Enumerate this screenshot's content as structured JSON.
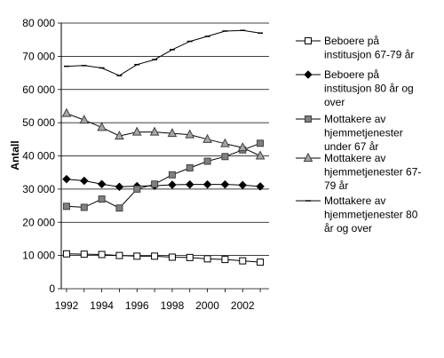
{
  "chart_data": {
    "type": "line",
    "title": "",
    "xlabel": "",
    "ylabel": "Antall",
    "x": [
      1992,
      1993,
      1994,
      1995,
      1996,
      1997,
      1998,
      1999,
      2000,
      2001,
      2002,
      2003
    ],
    "xticks": [
      "1992",
      "1994",
      "1996",
      "1998",
      "2000",
      "2002"
    ],
    "xlim": [
      1991.7,
      2003.5
    ],
    "ylim": [
      0,
      80000
    ],
    "yticks": [
      "0",
      "10 000",
      "20 000",
      "30 000",
      "40 000",
      "50 000",
      "60 000",
      "70 000",
      "80 000"
    ],
    "grid": "horizontal",
    "legend_position": "right",
    "series": [
      {
        "name": "Beboere på institusjon 67-79 år",
        "legend_lines": [
          "Beboere på",
          "institusjon 67-79 år"
        ],
        "marker": "square-open",
        "color": "#000000",
        "values": [
          10500,
          10400,
          10300,
          10000,
          9800,
          9800,
          9500,
          9400,
          9000,
          8800,
          8400,
          8000
        ]
      },
      {
        "name": "Beboere på institusjon 80 år og over",
        "legend_lines": [
          "Beboere på",
          "institusjon 80 år og",
          "over"
        ],
        "marker": "diamond",
        "color": "#000000",
        "values": [
          33000,
          32500,
          31500,
          30700,
          30900,
          31000,
          31300,
          31400,
          31400,
          31400,
          31200,
          30800
        ]
      },
      {
        "name": "Mottakere av hjemmetjenester under 67 år",
        "legend_lines": [
          "Mottakere av",
          "hjemmetjenester",
          "under 67 år"
        ],
        "marker": "square-gray",
        "color": "#808080",
        "values": [
          24800,
          24500,
          27000,
          24300,
          30000,
          31500,
          34300,
          36400,
          38400,
          39800,
          41800,
          43800
        ]
      },
      {
        "name": "Mottakere av hjemmetjenester 67-79 år",
        "legend_lines": [
          "Mottakere av",
          "hjemmetjenester 67-",
          "79 år"
        ],
        "marker": "triangle-gray",
        "color": "#808080",
        "values": [
          52800,
          50800,
          48600,
          46000,
          47200,
          47200,
          46800,
          46400,
          45000,
          43700,
          42500,
          40000
        ]
      },
      {
        "name": "Mottakere av hjemmetjenester 80 år og over",
        "legend_lines": [
          "Mottakere av",
          "hjemmetjenester 80",
          "år og over"
        ],
        "marker": "dash",
        "color": "#000000",
        "values": [
          67000,
          67200,
          66500,
          64200,
          67500,
          69000,
          72000,
          74500,
          76000,
          77600,
          77800,
          77000
        ]
      }
    ]
  }
}
